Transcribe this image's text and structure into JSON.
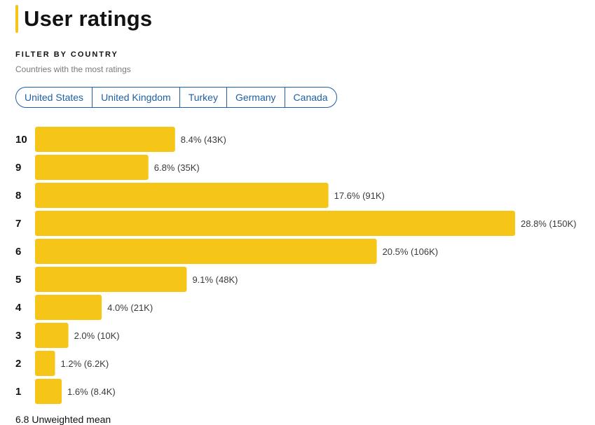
{
  "page": {
    "title": "User ratings"
  },
  "filter": {
    "heading": "FILTER BY COUNTRY",
    "subtitle": "Countries with the most ratings",
    "countries": [
      "United States",
      "United Kingdom",
      "Turkey",
      "Germany",
      "Canada"
    ]
  },
  "colors": {
    "bar": "#f5c518",
    "chip_accent": "#1f5fa3"
  },
  "chart_data": {
    "type": "bar",
    "orientation": "horizontal",
    "categories": [
      "10",
      "9",
      "8",
      "7",
      "6",
      "5",
      "4",
      "3",
      "2",
      "1"
    ],
    "values": [
      8.4,
      6.8,
      17.6,
      28.8,
      20.5,
      9.1,
      4.0,
      2.0,
      1.2,
      1.6
    ],
    "counts": [
      "43K",
      "35K",
      "91K",
      "150K",
      "106K",
      "48K",
      "21K",
      "10K",
      "6.2K",
      "8.4K"
    ],
    "labels": [
      "8.4% (43K)",
      "6.8% (35K)",
      "17.6% (91K)",
      "28.8% (150K)",
      "20.5% (106K)",
      "9.1% (48K)",
      "4.0% (21K)",
      "2.0% (10K)",
      "1.2% (6.2K)",
      "1.6% (8.4K)"
    ],
    "unit": "%",
    "grid": false,
    "legend": "none"
  },
  "summary": {
    "mean_text": "6.8 Unweighted mean"
  }
}
